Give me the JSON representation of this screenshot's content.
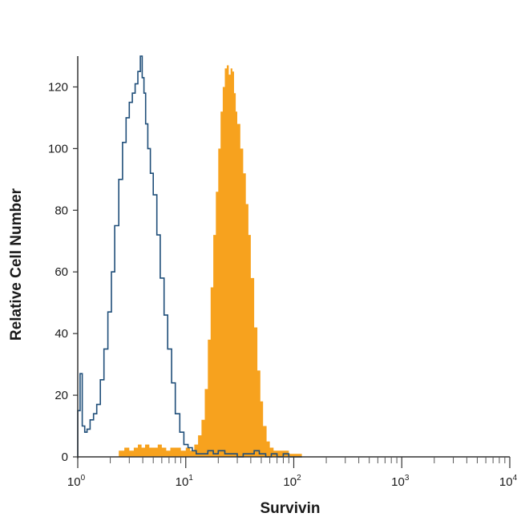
{
  "chart_data": {
    "type": "area",
    "title": "",
    "xlabel": "Survivin",
    "ylabel": "Relative Cell Number",
    "x_scale": "log10",
    "xlim": [
      1,
      10000
    ],
    "ylim": [
      0,
      130
    ],
    "grid": false,
    "y_ticks": [
      0,
      20,
      40,
      60,
      80,
      100,
      120
    ],
    "x_ticks": [
      {
        "value": 1,
        "base": "10",
        "exp": "0"
      },
      {
        "value": 10,
        "base": "10",
        "exp": "1"
      },
      {
        "value": 100,
        "base": "10",
        "exp": "2"
      },
      {
        "value": 1000,
        "base": "10",
        "exp": "3"
      },
      {
        "value": 10000,
        "base": "10",
        "exp": "4"
      }
    ],
    "series": [
      {
        "style": "outline",
        "color": "#1f4e79",
        "x": [
          1.0,
          1.05,
          1.1,
          1.16,
          1.22,
          1.3,
          1.4,
          1.5,
          1.62,
          1.75,
          1.9,
          2.05,
          2.2,
          2.4,
          2.6,
          2.8,
          3.0,
          3.2,
          3.4,
          3.6,
          3.8,
          3.95,
          4.1,
          4.25,
          4.45,
          4.7,
          5.0,
          5.4,
          5.8,
          6.3,
          6.8,
          7.4,
          8.0,
          8.8,
          9.6,
          10.5,
          11.5,
          12.5,
          14.0,
          16.0,
          18.0,
          20.0,
          23.0,
          26.0,
          30.0,
          34.0,
          38.0,
          43.0,
          48.0,
          55.0,
          62.0,
          70.0,
          80.0,
          90.0,
          100.0,
          110.0
        ],
        "values": [
          15,
          27,
          10,
          8,
          9,
          12,
          14,
          17,
          25,
          35,
          47,
          60,
          75,
          90,
          102,
          110,
          115,
          118,
          121,
          125,
          130,
          123,
          118,
          108,
          100,
          92,
          85,
          72,
          58,
          46,
          35,
          24,
          14,
          8,
          4,
          3,
          2,
          1,
          1,
          2,
          1,
          2,
          1,
          1,
          0,
          1,
          1,
          2,
          1,
          0,
          1,
          0,
          1,
          0,
          0,
          0
        ]
      },
      {
        "style": "filled",
        "color": "#f7a21e",
        "x": [
          2.4,
          2.7,
          3.0,
          3.3,
          3.6,
          3.9,
          4.2,
          4.6,
          5.0,
          5.5,
          6.0,
          6.6,
          7.2,
          8.0,
          9.0,
          10.0,
          11.0,
          12.0,
          13.0,
          14.0,
          15.0,
          16.0,
          17.0,
          18.0,
          19.0,
          20.0,
          21.0,
          22.0,
          23.0,
          24.0,
          25.0,
          26.0,
          27.0,
          28.0,
          29.0,
          30.0,
          32.0,
          34.0,
          36.0,
          38.0,
          40.0,
          43.0,
          46.0,
          49.0,
          52.0,
          56.0,
          60.0,
          65.0,
          70.0,
          80.0,
          90.0,
          100.0,
          110.0
        ],
        "values": [
          2,
          3,
          2,
          3,
          4,
          3,
          4,
          3,
          3,
          4,
          3,
          2,
          3,
          3,
          2,
          3,
          2,
          4,
          7,
          12,
          22,
          38,
          55,
          72,
          86,
          100,
          112,
          120,
          126,
          127,
          124,
          126,
          125,
          118,
          112,
          108,
          100,
          92,
          82,
          72,
          58,
          42,
          28,
          18,
          10,
          5,
          3,
          2,
          2,
          2,
          1,
          1,
          1
        ]
      }
    ]
  }
}
